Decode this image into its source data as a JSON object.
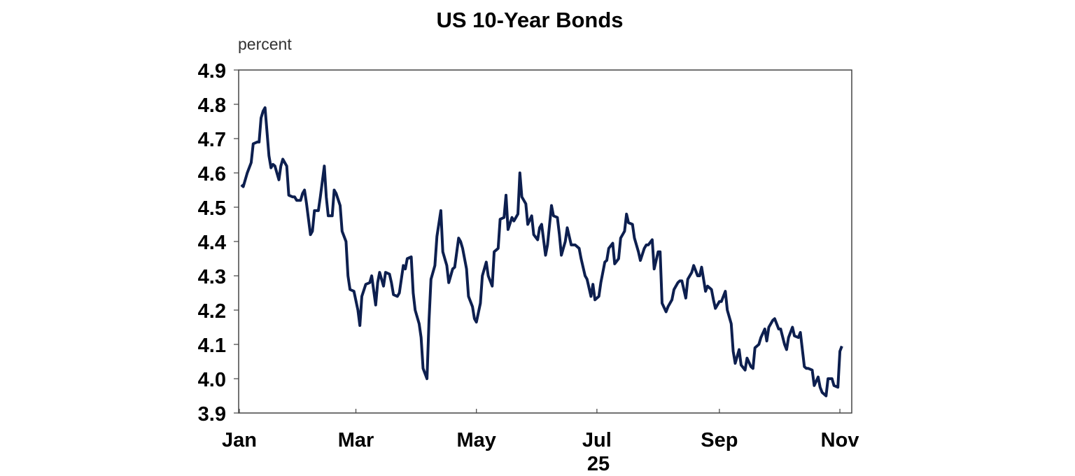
{
  "chart_data": {
    "type": "line",
    "title": "US 10-Year Bonds",
    "ylabel": "percent",
    "xlabel": "",
    "ylim": [
      3.9,
      4.9
    ],
    "yticks": [
      "3.9",
      "4.0",
      "4.1",
      "4.2",
      "4.3",
      "4.4",
      "4.5",
      "4.6",
      "4.7",
      "4.8",
      "4.9"
    ],
    "xlim": [
      "2025-01-01",
      "2025-11-07"
    ],
    "xticks": [
      {
        "label": "Jan",
        "date": "2025-01-01"
      },
      {
        "label": "Mar",
        "date": "2025-03-01"
      },
      {
        "label": "May",
        "date": "2025-05-01"
      },
      {
        "label": "Jul",
        "date": "2025-07-01"
      },
      {
        "label": "Sep",
        "date": "2025-09-01"
      },
      {
        "label": "Nov",
        "date": "2025-11-01"
      }
    ],
    "year_label": "25",
    "grid": false,
    "line_color": "#0d1f4f",
    "series": [
      {
        "points": [
          [
            "2025-01-02",
            4.565
          ],
          [
            "2025-01-03",
            4.56
          ],
          [
            "2025-01-05",
            4.6
          ],
          [
            "2025-01-07",
            4.63
          ],
          [
            "2025-01-08",
            4.685
          ],
          [
            "2025-01-10",
            4.69
          ],
          [
            "2025-01-11",
            4.69
          ],
          [
            "2025-01-12",
            4.76
          ],
          [
            "2025-01-13",
            4.78
          ],
          [
            "2025-01-14",
            4.79
          ],
          [
            "2025-01-16",
            4.65
          ],
          [
            "2025-01-17",
            4.615
          ],
          [
            "2025-01-18",
            4.625
          ],
          [
            "2025-01-19",
            4.62
          ],
          [
            "2025-01-21",
            4.58
          ],
          [
            "2025-01-22",
            4.62
          ],
          [
            "2025-01-23",
            4.64
          ],
          [
            "2025-01-25",
            4.62
          ],
          [
            "2025-01-26",
            4.535
          ],
          [
            "2025-01-28",
            4.53
          ],
          [
            "2025-01-29",
            4.53
          ],
          [
            "2025-01-30",
            4.52
          ],
          [
            "2025-02-01",
            4.52
          ],
          [
            "2025-02-02",
            4.54
          ],
          [
            "2025-02-03",
            4.55
          ],
          [
            "2025-02-04",
            4.51
          ],
          [
            "2025-02-06",
            4.42
          ],
          [
            "2025-02-07",
            4.43
          ],
          [
            "2025-02-08",
            4.49
          ],
          [
            "2025-02-10",
            4.49
          ],
          [
            "2025-02-11",
            4.53
          ],
          [
            "2025-02-13",
            4.62
          ],
          [
            "2025-02-14",
            4.53
          ],
          [
            "2025-02-15",
            4.475
          ],
          [
            "2025-02-17",
            4.475
          ],
          [
            "2025-02-18",
            4.55
          ],
          [
            "2025-02-19",
            4.54
          ],
          [
            "2025-02-21",
            4.505
          ],
          [
            "2025-02-22",
            4.43
          ],
          [
            "2025-02-24",
            4.4
          ],
          [
            "2025-02-25",
            4.3
          ],
          [
            "2025-02-26",
            4.26
          ],
          [
            "2025-02-28",
            4.255
          ],
          [
            "2025-03-02",
            4.2
          ],
          [
            "2025-03-03",
            4.155
          ],
          [
            "2025-03-04",
            4.24
          ],
          [
            "2025-03-06",
            4.275
          ],
          [
            "2025-03-08",
            4.28
          ],
          [
            "2025-03-09",
            4.3
          ],
          [
            "2025-03-11",
            4.215
          ],
          [
            "2025-03-12",
            4.28
          ],
          [
            "2025-03-13",
            4.31
          ],
          [
            "2025-03-15",
            4.27
          ],
          [
            "2025-03-16",
            4.31
          ],
          [
            "2025-03-18",
            4.305
          ],
          [
            "2025-03-19",
            4.28
          ],
          [
            "2025-03-20",
            4.245
          ],
          [
            "2025-03-22",
            4.24
          ],
          [
            "2025-03-23",
            4.25
          ],
          [
            "2025-03-25",
            4.33
          ],
          [
            "2025-03-26",
            4.32
          ],
          [
            "2025-03-27",
            4.35
          ],
          [
            "2025-03-29",
            4.355
          ],
          [
            "2025-03-30",
            4.25
          ],
          [
            "2025-03-31",
            4.2
          ],
          [
            "2025-04-02",
            4.16
          ],
          [
            "2025-04-03",
            4.12
          ],
          [
            "2025-04-04",
            4.03
          ],
          [
            "2025-04-06",
            4.0
          ],
          [
            "2025-04-07",
            4.17
          ],
          [
            "2025-04-08",
            4.29
          ],
          [
            "2025-04-10",
            4.33
          ],
          [
            "2025-04-11",
            4.415
          ],
          [
            "2025-04-13",
            4.49
          ],
          [
            "2025-04-14",
            4.37
          ],
          [
            "2025-04-16",
            4.33
          ],
          [
            "2025-04-17",
            4.28
          ],
          [
            "2025-04-19",
            4.32
          ],
          [
            "2025-04-20",
            4.325
          ],
          [
            "2025-04-22",
            4.41
          ],
          [
            "2025-04-23",
            4.4
          ],
          [
            "2025-04-24",
            4.38
          ],
          [
            "2025-04-26",
            4.32
          ],
          [
            "2025-04-27",
            4.24
          ],
          [
            "2025-04-29",
            4.21
          ],
          [
            "2025-04-30",
            4.175
          ],
          [
            "2025-05-01",
            4.165
          ],
          [
            "2025-05-03",
            4.22
          ],
          [
            "2025-05-04",
            4.3
          ],
          [
            "2025-05-06",
            4.34
          ],
          [
            "2025-05-07",
            4.3
          ],
          [
            "2025-05-09",
            4.27
          ],
          [
            "2025-05-10",
            4.37
          ],
          [
            "2025-05-12",
            4.38
          ],
          [
            "2025-05-13",
            4.465
          ],
          [
            "2025-05-15",
            4.47
          ],
          [
            "2025-05-16",
            4.535
          ],
          [
            "2025-05-17",
            4.435
          ],
          [
            "2025-05-19",
            4.47
          ],
          [
            "2025-05-20",
            4.46
          ],
          [
            "2025-05-22",
            4.48
          ],
          [
            "2025-05-23",
            4.6
          ],
          [
            "2025-05-24",
            4.53
          ],
          [
            "2025-05-26",
            4.51
          ],
          [
            "2025-05-27",
            4.45
          ],
          [
            "2025-05-29",
            4.475
          ],
          [
            "2025-05-30",
            4.42
          ],
          [
            "2025-06-01",
            4.405
          ],
          [
            "2025-06-02",
            4.44
          ],
          [
            "2025-06-03",
            4.45
          ],
          [
            "2025-06-05",
            4.36
          ],
          [
            "2025-06-06",
            4.39
          ],
          [
            "2025-06-08",
            4.505
          ],
          [
            "2025-06-09",
            4.475
          ],
          [
            "2025-06-11",
            4.47
          ],
          [
            "2025-06-12",
            4.42
          ],
          [
            "2025-06-13",
            4.36
          ],
          [
            "2025-06-15",
            4.4
          ],
          [
            "2025-06-16",
            4.44
          ],
          [
            "2025-06-18",
            4.39
          ],
          [
            "2025-06-19",
            4.39
          ],
          [
            "2025-06-20",
            4.39
          ],
          [
            "2025-06-22",
            4.38
          ],
          [
            "2025-06-23",
            4.35
          ],
          [
            "2025-06-25",
            4.3
          ],
          [
            "2025-06-26",
            4.29
          ],
          [
            "2025-06-28",
            4.24
          ],
          [
            "2025-06-29",
            4.275
          ],
          [
            "2025-06-30",
            4.23
          ],
          [
            "2025-07-02",
            4.24
          ],
          [
            "2025-07-03",
            4.28
          ],
          [
            "2025-07-05",
            4.34
          ],
          [
            "2025-07-06",
            4.345
          ],
          [
            "2025-07-07",
            4.38
          ],
          [
            "2025-07-09",
            4.395
          ],
          [
            "2025-07-10",
            4.335
          ],
          [
            "2025-07-12",
            4.35
          ],
          [
            "2025-07-13",
            4.41
          ],
          [
            "2025-07-15",
            4.43
          ],
          [
            "2025-07-16",
            4.48
          ],
          [
            "2025-07-17",
            4.455
          ],
          [
            "2025-07-19",
            4.45
          ],
          [
            "2025-07-20",
            4.41
          ],
          [
            "2025-07-22",
            4.37
          ],
          [
            "2025-07-23",
            4.345
          ],
          [
            "2025-07-25",
            4.38
          ],
          [
            "2025-07-26",
            4.39
          ],
          [
            "2025-07-27",
            4.39
          ],
          [
            "2025-07-29",
            4.405
          ],
          [
            "2025-07-30",
            4.32
          ],
          [
            "2025-08-01",
            4.37
          ],
          [
            "2025-08-02",
            4.37
          ],
          [
            "2025-08-03",
            4.22
          ],
          [
            "2025-08-05",
            4.195
          ],
          [
            "2025-08-06",
            4.21
          ],
          [
            "2025-08-08",
            4.23
          ],
          [
            "2025-08-09",
            4.26
          ],
          [
            "2025-08-11",
            4.28
          ],
          [
            "2025-08-12",
            4.285
          ],
          [
            "2025-08-13",
            4.285
          ],
          [
            "2025-08-15",
            4.235
          ],
          [
            "2025-08-16",
            4.29
          ],
          [
            "2025-08-18",
            4.31
          ],
          [
            "2025-08-19",
            4.33
          ],
          [
            "2025-08-21",
            4.3
          ],
          [
            "2025-08-22",
            4.3
          ],
          [
            "2025-08-23",
            4.325
          ],
          [
            "2025-08-25",
            4.255
          ],
          [
            "2025-08-26",
            4.27
          ],
          [
            "2025-08-28",
            4.26
          ],
          [
            "2025-08-29",
            4.23
          ],
          [
            "2025-08-30",
            4.205
          ],
          [
            "2025-09-01",
            4.225
          ],
          [
            "2025-09-02",
            4.225
          ],
          [
            "2025-09-04",
            4.255
          ],
          [
            "2025-09-05",
            4.2
          ],
          [
            "2025-09-07",
            4.16
          ],
          [
            "2025-09-08",
            4.08
          ],
          [
            "2025-09-09",
            4.045
          ],
          [
            "2025-09-11",
            4.085
          ],
          [
            "2025-09-12",
            4.04
          ],
          [
            "2025-09-14",
            4.025
          ],
          [
            "2025-09-15",
            4.06
          ],
          [
            "2025-09-17",
            4.035
          ],
          [
            "2025-09-18",
            4.03
          ],
          [
            "2025-09-19",
            4.09
          ],
          [
            "2025-09-21",
            4.1
          ],
          [
            "2025-09-22",
            4.12
          ],
          [
            "2025-09-24",
            4.145
          ],
          [
            "2025-09-25",
            4.11
          ],
          [
            "2025-09-26",
            4.15
          ],
          [
            "2025-09-28",
            4.17
          ],
          [
            "2025-09-29",
            4.175
          ],
          [
            "2025-10-01",
            4.145
          ],
          [
            "2025-10-02",
            4.145
          ],
          [
            "2025-10-04",
            4.1
          ],
          [
            "2025-10-05",
            4.085
          ],
          [
            "2025-10-06",
            4.12
          ],
          [
            "2025-10-08",
            4.15
          ],
          [
            "2025-10-09",
            4.125
          ],
          [
            "2025-10-11",
            4.12
          ],
          [
            "2025-10-12",
            4.135
          ],
          [
            "2025-10-14",
            4.035
          ],
          [
            "2025-10-15",
            4.03
          ],
          [
            "2025-10-16",
            4.03
          ],
          [
            "2025-10-18",
            4.025
          ],
          [
            "2025-10-19",
            3.98
          ],
          [
            "2025-10-21",
            4.005
          ],
          [
            "2025-10-22",
            3.975
          ],
          [
            "2025-10-23",
            3.96
          ],
          [
            "2025-10-25",
            3.95
          ],
          [
            "2025-10-26",
            4.0
          ],
          [
            "2025-10-28",
            4.0
          ],
          [
            "2025-10-29",
            3.98
          ],
          [
            "2025-10-31",
            3.975
          ],
          [
            "2025-11-01",
            4.08
          ],
          [
            "2025-11-02",
            4.095
          ]
        ]
      }
    ]
  }
}
